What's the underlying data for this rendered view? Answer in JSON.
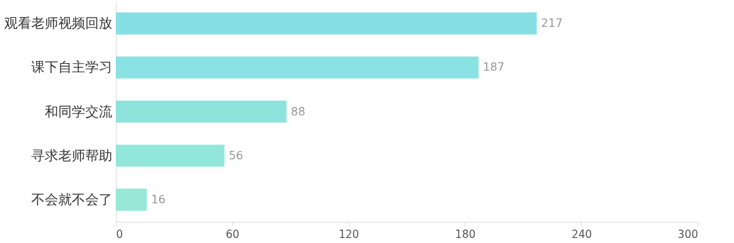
{
  "chart_data": {
    "type": "bar",
    "orientation": "horizontal",
    "categories": [
      "观看老师视频回放",
      "课下自主学习",
      "和同学交流",
      "寻求老师帮助",
      "不会就不会了"
    ],
    "values": [
      217,
      187,
      88,
      56,
      16
    ],
    "colors": [
      "#86e0e3",
      "#8ae1e1",
      "#8fe3dd",
      "#93e6da",
      "#98e8d7"
    ],
    "xlim": [
      0,
      300
    ],
    "xticks": [
      0,
      60,
      120,
      180,
      240,
      300
    ],
    "data_labels": true,
    "grid": false
  }
}
